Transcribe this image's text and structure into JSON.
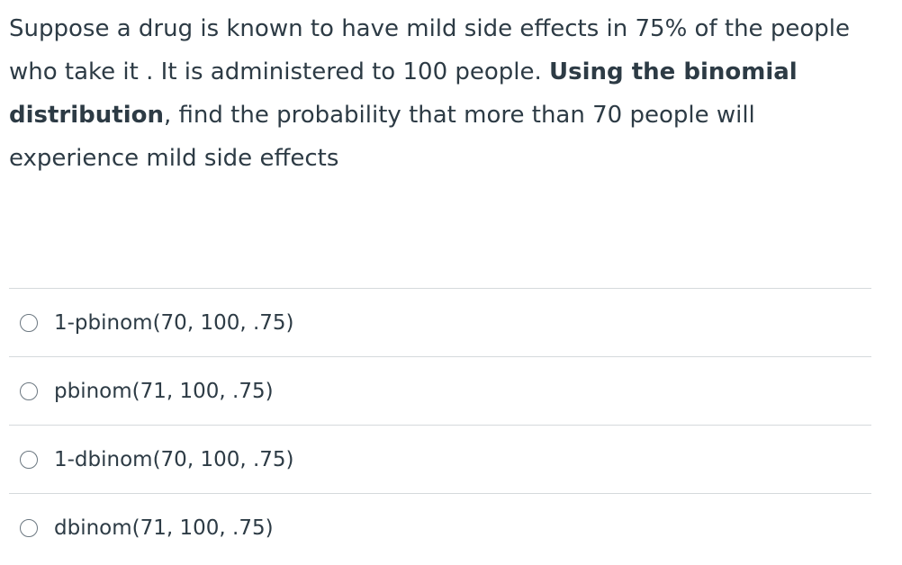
{
  "question": {
    "text_before": "Suppose a drug is known to have mild side effects in 75% of the people who take it . It is administered to 100 people.",
    "bold": "Using the binomial distribution",
    "text_after": ", find the probability that more than 70 people will experience mild side effects"
  },
  "options": [
    "1-pbinom(70, 100, .75)",
    "pbinom(71, 100, .75)",
    "1-dbinom(70, 100, .75)",
    "dbinom(71, 100, .75)"
  ]
}
